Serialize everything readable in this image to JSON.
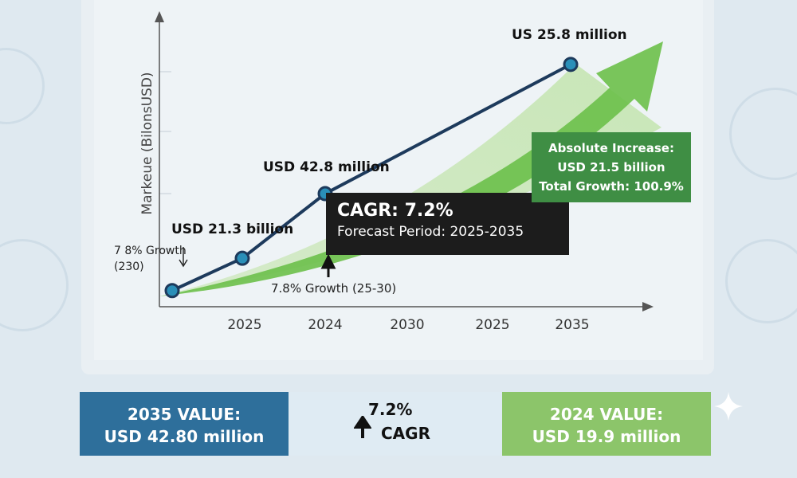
{
  "chart_data": {
    "type": "line",
    "ylabel": "Markeue (BilonsUSD)",
    "x_tick_labels": [
      "2025",
      "2024",
      "2030",
      "2025",
      "2035"
    ],
    "points": [
      {
        "label": "",
        "value": 1
      },
      {
        "label": "USD 21.3 billion",
        "value": 3
      },
      {
        "label": "USD 42.8 million",
        "value": 7
      },
      {
        "label": "US 25.8 million",
        "value": 15
      }
    ],
    "ylim": [
      0,
      18
    ],
    "annotations": {
      "cagr_title": "CAGR: 7.2%",
      "forecast_period": "Forecast Period: 2025-2035",
      "growth_left_line1": "7 8% Growth",
      "growth_left_line2": "(230)",
      "growth_bottom": "7.8% Growth (25-30)",
      "absolute_increase": "Absolute Increase:",
      "absolute_value": "USD 21.5 billion",
      "total_growth": "Total Growth: 100.9%"
    },
    "colors": {
      "line": "#1d3a5c",
      "marker": "#2a8fb8",
      "arrow": "#6cc04a"
    }
  },
  "summary": {
    "left_title": "2035 VALUE:",
    "left_value": "USD 42.80 million",
    "mid_pct": "7.2%",
    "mid_label": "CAGR",
    "right_title": "2024 VALUE:",
    "right_value": "USD 19.9 million"
  }
}
